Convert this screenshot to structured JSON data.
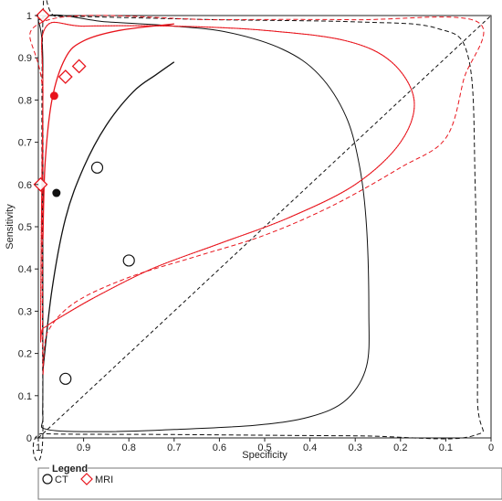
{
  "chart_data": {
    "type": "scatter",
    "xlabel": "Specificity",
    "ylabel": "Sensitivity",
    "xlim": [
      1,
      0
    ],
    "ylim": [
      0,
      1
    ],
    "x_reversed": true,
    "x_ticks": [
      "1",
      "0.9",
      "0.8",
      "0.7",
      "0.6",
      "0.5",
      "0.4",
      "0.3",
      "0.2",
      "0.1",
      "0"
    ],
    "y_ticks": [
      "0",
      "0.1",
      "0.2",
      "0.3",
      "0.4",
      "0.5",
      "0.6",
      "0.7",
      "0.8",
      "0.9",
      "1"
    ],
    "chance_line": {
      "from": [
        1,
        0
      ],
      "to": [
        0,
        1
      ],
      "style": "dashed",
      "color": "#111111"
    },
    "legend": {
      "title": "Legend",
      "position": "bottom-left",
      "entries": [
        {
          "label": "CT",
          "marker": "circle",
          "color": "#111111"
        },
        {
          "label": "MRI",
          "marker": "diamond",
          "color": "#e8141c"
        }
      ]
    },
    "series": [
      {
        "name": "CT",
        "color": "#111111",
        "marker": "circle",
        "studies": [
          {
            "specificity": 0.87,
            "sensitivity": 0.64
          },
          {
            "specificity": 0.8,
            "sensitivity": 0.42
          },
          {
            "specificity": 0.94,
            "sensitivity": 0.14
          }
        ],
        "summary_point": {
          "specificity": 0.96,
          "sensitivity": 0.58
        },
        "sroc_curve": [
          [
            0.99,
            0.16
          ],
          [
            0.97,
            0.35
          ],
          [
            0.94,
            0.52
          ],
          [
            0.9,
            0.64
          ],
          [
            0.85,
            0.74
          ],
          [
            0.79,
            0.82
          ],
          [
            0.74,
            0.86
          ],
          [
            0.7,
            0.89
          ]
        ],
        "confidence_region": [
          [
            0.99,
            0.16
          ],
          [
            0.99,
            0.88
          ],
          [
            0.99,
            0.995
          ],
          [
            0.85,
            0.985
          ],
          [
            0.7,
            0.975
          ],
          [
            0.58,
            0.96
          ],
          [
            0.46,
            0.92
          ],
          [
            0.38,
            0.86
          ],
          [
            0.32,
            0.76
          ],
          [
            0.29,
            0.64
          ],
          [
            0.275,
            0.5
          ],
          [
            0.27,
            0.3
          ],
          [
            0.275,
            0.17
          ],
          [
            0.32,
            0.09
          ],
          [
            0.4,
            0.05
          ],
          [
            0.52,
            0.03
          ],
          [
            0.7,
            0.02
          ],
          [
            0.85,
            0.015
          ],
          [
            0.98,
            0.02
          ],
          [
            0.99,
            0.05
          ]
        ],
        "prediction_region": [
          [
            0.99,
            0.02
          ],
          [
            0.99,
            0.99
          ],
          [
            0.96,
            0.998
          ],
          [
            0.8,
            0.995
          ],
          [
            0.6,
            0.99
          ],
          [
            0.3,
            0.985
          ],
          [
            0.12,
            0.97
          ],
          [
            0.05,
            0.9
          ],
          [
            0.035,
            0.6
          ],
          [
            0.03,
            0.1
          ],
          [
            0.04,
            0.005
          ],
          [
            0.3,
            0.005
          ],
          [
            0.7,
            0.008
          ],
          [
            0.99,
            0.01
          ]
        ]
      },
      {
        "name": "MRI",
        "color": "#e8141c",
        "marker": "diamond",
        "studies": [
          {
            "specificity": 0.99,
            "sensitivity": 1.0
          },
          {
            "specificity": 0.91,
            "sensitivity": 0.88
          },
          {
            "specificity": 0.94,
            "sensitivity": 0.855
          },
          {
            "specificity": 0.995,
            "sensitivity": 0.6
          }
        ],
        "summary_point": {
          "specificity": 0.965,
          "sensitivity": 0.81
        },
        "sroc_curve": [
          [
            0.99,
            0.47
          ],
          [
            0.985,
            0.65
          ],
          [
            0.97,
            0.8
          ],
          [
            0.94,
            0.9
          ],
          [
            0.9,
            0.94
          ],
          [
            0.82,
            0.965
          ],
          [
            0.7,
            0.98
          ]
        ],
        "confidence_region": [
          [
            0.995,
            0.27
          ],
          [
            0.99,
            0.8
          ],
          [
            0.985,
            0.97
          ],
          [
            0.9,
            0.975
          ],
          [
            0.7,
            0.975
          ],
          [
            0.5,
            0.965
          ],
          [
            0.32,
            0.94
          ],
          [
            0.22,
            0.89
          ],
          [
            0.17,
            0.8
          ],
          [
            0.2,
            0.7
          ],
          [
            0.3,
            0.6
          ],
          [
            0.45,
            0.52
          ],
          [
            0.6,
            0.46
          ],
          [
            0.75,
            0.4
          ],
          [
            0.88,
            0.33
          ],
          [
            0.96,
            0.28
          ],
          [
            0.99,
            0.26
          ]
        ],
        "prediction_region": [
          [
            0.99,
            0.18
          ],
          [
            0.99,
            0.8
          ],
          [
            0.99,
            0.985
          ],
          [
            0.6,
            0.99
          ],
          [
            0.3,
            0.99
          ],
          [
            0.03,
            0.985
          ],
          [
            0.06,
            0.85
          ],
          [
            0.1,
            0.71
          ],
          [
            0.2,
            0.64
          ],
          [
            0.35,
            0.55
          ],
          [
            0.5,
            0.48
          ],
          [
            0.65,
            0.43
          ],
          [
            0.8,
            0.38
          ],
          [
            0.92,
            0.32
          ],
          [
            0.98,
            0.25
          ]
        ]
      }
    ]
  }
}
